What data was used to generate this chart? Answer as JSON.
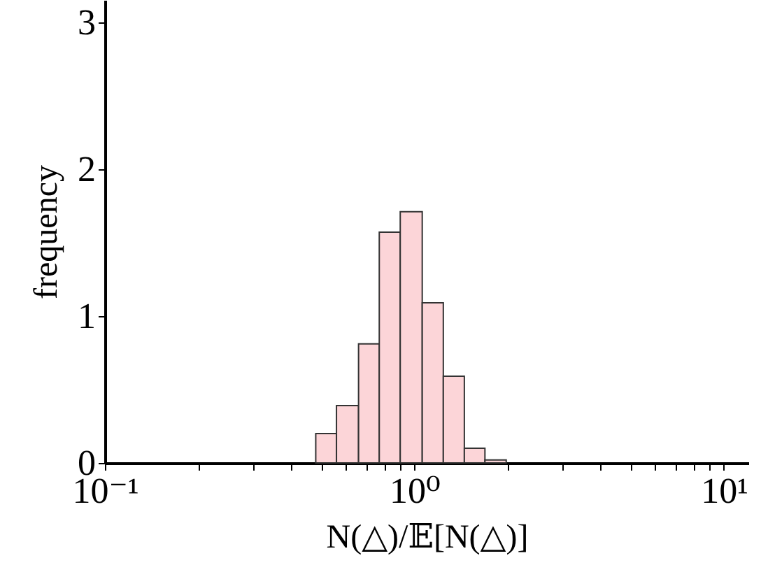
{
  "chart_data": {
    "type": "histogram",
    "xlabel": "N(△)/𝔼[N(△)]",
    "ylabel": "frequency",
    "bins": [
      0.48,
      0.56,
      0.66,
      0.77,
      0.9,
      1.06,
      1.24,
      1.45,
      1.69,
      1.98
    ],
    "values": [
      0.2,
      0.39,
      0.81,
      1.57,
      1.71,
      1.09,
      0.59,
      0.1,
      0.02
    ],
    "color": "#fcd5d8",
    "log": "x",
    "xlim": [
      0.1,
      12
    ],
    "xticks": [
      {
        "value": 0.1,
        "label": "10⁻¹"
      },
      {
        "value": 0.2,
        "label": null
      },
      {
        "value": 0.3,
        "label": null
      },
      {
        "value": 0.4,
        "label": null
      },
      {
        "value": 0.5,
        "label": null
      },
      {
        "value": 0.6,
        "label": null
      },
      {
        "value": 0.7,
        "label": null
      },
      {
        "value": 0.8,
        "label": null
      },
      {
        "value": 0.9,
        "label": null
      },
      {
        "value": 1,
        "label": "10⁰"
      },
      {
        "value": 2,
        "label": null
      },
      {
        "value": 3,
        "label": null
      },
      {
        "value": 4,
        "label": null
      },
      {
        "value": 5,
        "label": null
      },
      {
        "value": 6,
        "label": null
      },
      {
        "value": 7,
        "label": null
      },
      {
        "value": 8,
        "label": null
      },
      {
        "value": 9,
        "label": null
      },
      {
        "value": 10,
        "label": "10¹"
      }
    ],
    "ylim": [
      0,
      3.15
    ],
    "yticks": [
      0,
      1,
      2,
      3
    ],
    "grid": false
  }
}
